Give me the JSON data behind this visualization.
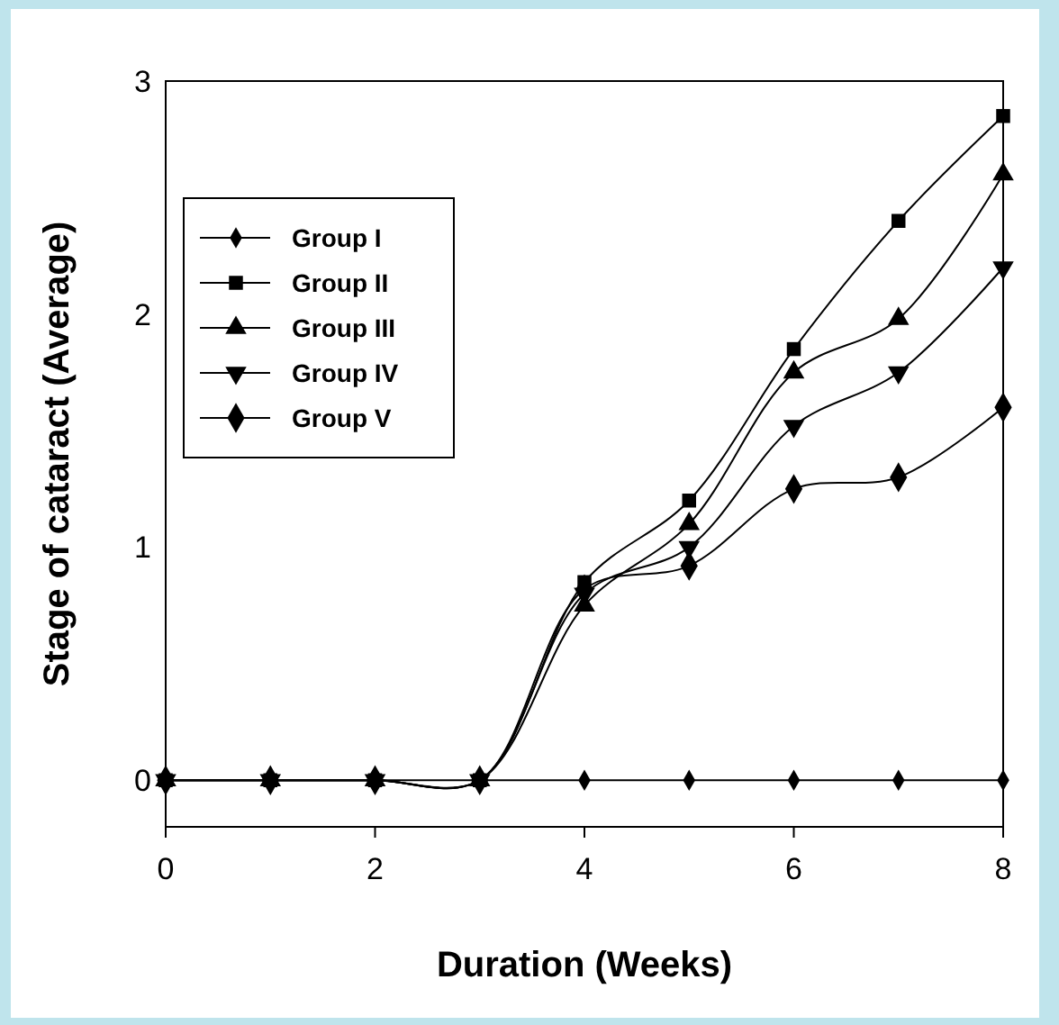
{
  "chart_data": {
    "type": "line",
    "xlabel": "Duration (Weeks)",
    "ylabel": "Stage of cataract (Average)",
    "x": [
      0,
      1,
      2,
      3,
      4,
      5,
      6,
      7,
      8
    ],
    "xlim": [
      0,
      8
    ],
    "xticks": [
      0,
      2,
      4,
      6,
      8
    ],
    "ylim": [
      -0.2,
      3
    ],
    "yticks": [
      0,
      1,
      2,
      3
    ],
    "grid": false,
    "legend": "top left",
    "line_style": "solid",
    "series": [
      {
        "name": "Group I",
        "color": "#000000",
        "marker": "diamond",
        "values": [
          0,
          0,
          0,
          0,
          0,
          0,
          0,
          0,
          0
        ]
      },
      {
        "name": "Group II",
        "color": "#000000",
        "marker": "square",
        "values": [
          0,
          0,
          0,
          0,
          0.85,
          1.2,
          1.85,
          2.4,
          2.85
        ]
      },
      {
        "name": "Group III",
        "color": "#000000",
        "marker": "triangle",
        "values": [
          0,
          0,
          0,
          0,
          0.75,
          1.1,
          1.75,
          1.98,
          2.6
        ]
      },
      {
        "name": "Group IV",
        "color": "#000000",
        "marker": "triangle-down",
        "values": [
          0,
          0,
          0,
          0,
          0.8,
          1.0,
          1.52,
          1.75,
          2.2
        ]
      },
      {
        "name": "Group V",
        "color": "#000000",
        "marker": "diamond",
        "values": [
          0,
          0,
          0,
          0,
          0.82,
          0.92,
          1.25,
          1.3,
          1.6
        ]
      }
    ]
  }
}
